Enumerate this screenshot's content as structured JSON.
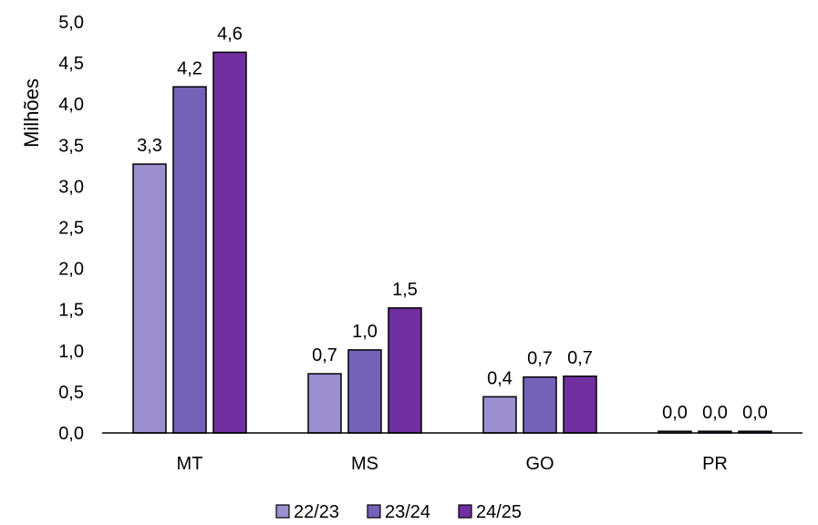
{
  "chart_data": {
    "type": "bar",
    "ylabel": "Milhões",
    "xlabel": "",
    "ylim": [
      0,
      5
    ],
    "yticks": [
      "0,0",
      "0,5",
      "1,0",
      "1,5",
      "2,0",
      "2,5",
      "3,0",
      "3,5",
      "4,0",
      "4,5",
      "5,0"
    ],
    "categories": [
      "MT",
      "MS",
      "GO",
      "PR"
    ],
    "series": [
      {
        "name": "22/23",
        "color": "#9b8fd0",
        "values": [
          3.27,
          0.72,
          0.44,
          0.02
        ],
        "labels": [
          "3,3",
          "0,7",
          "0,4",
          "0,0"
        ]
      },
      {
        "name": "23/24",
        "color": "#7462b8",
        "values": [
          4.21,
          1.01,
          0.68,
          0.02
        ],
        "labels": [
          "4,2",
          "1,0",
          "0,7",
          "0,0"
        ]
      },
      {
        "name": "24/25",
        "color": "#7030a0",
        "values": [
          4.63,
          1.52,
          0.69,
          0.02
        ],
        "labels": [
          "4,6",
          "1,5",
          "0,7",
          "0,0"
        ]
      }
    ],
    "legend_position": "bottom",
    "grid": false
  }
}
